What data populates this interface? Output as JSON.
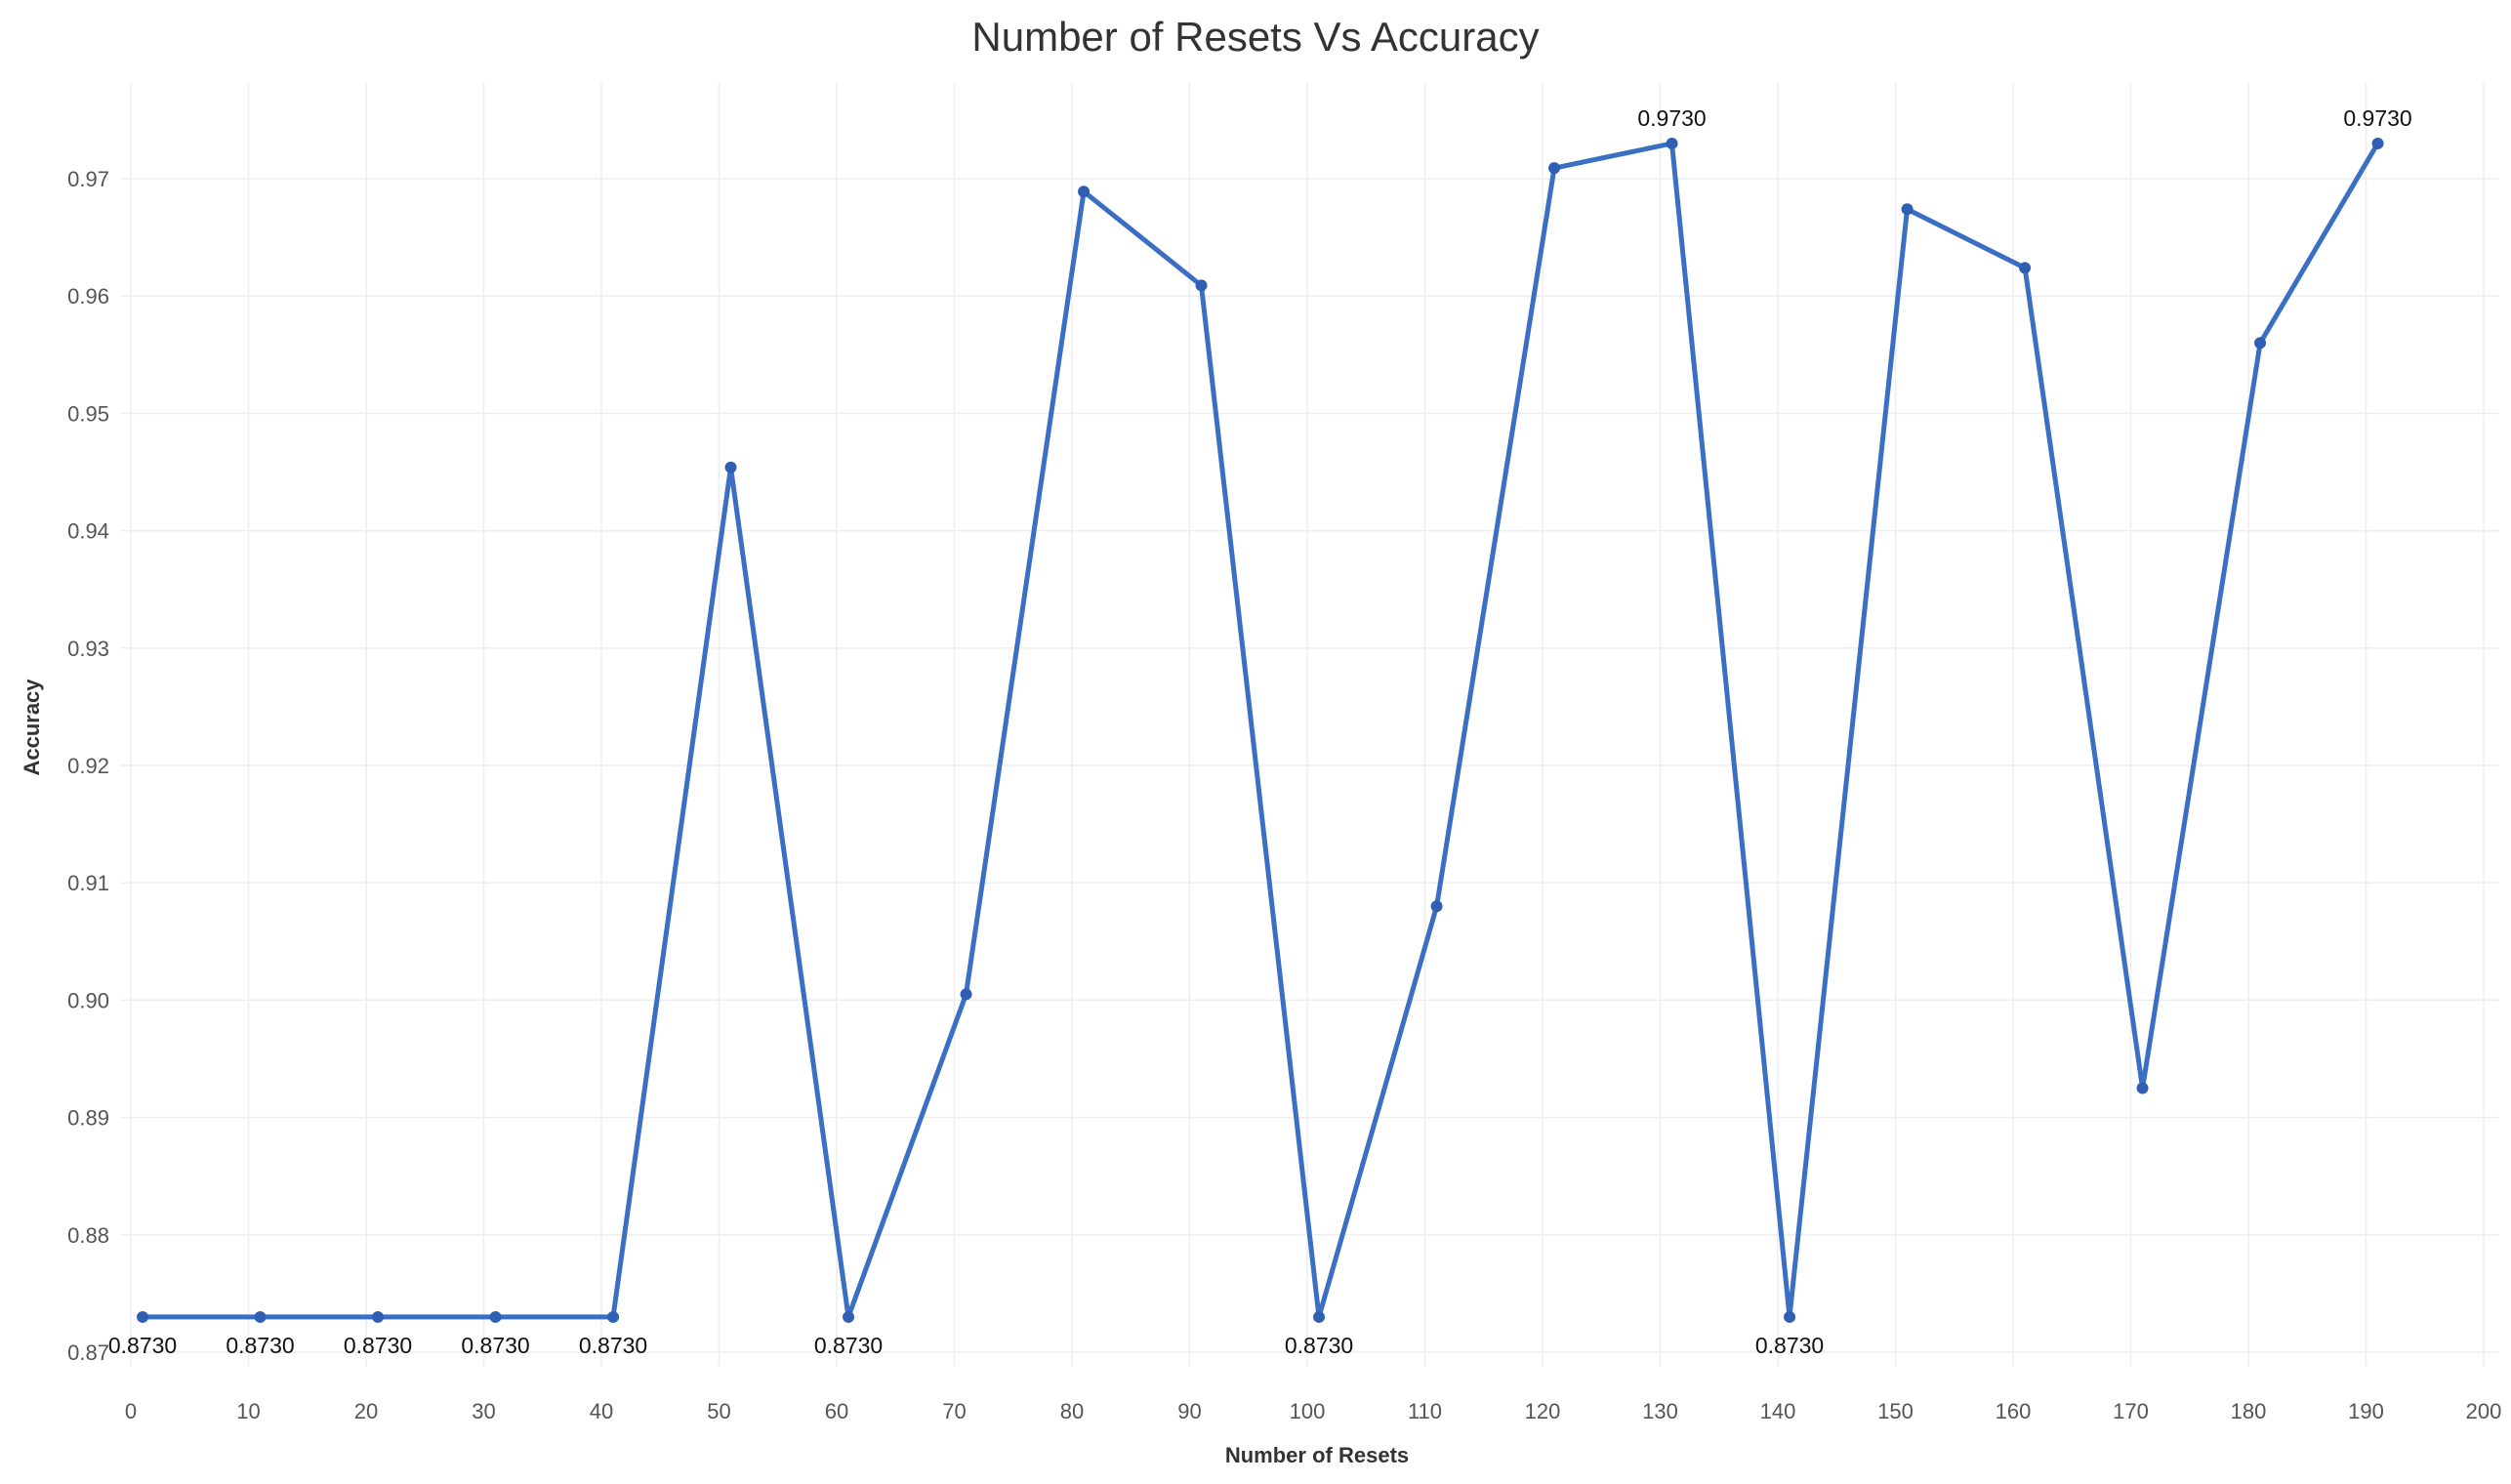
{
  "chart_data": {
    "type": "line",
    "title": "Number of Resets Vs Accuracy",
    "xlabel": "Number of Resets",
    "ylabel": "Accuracy",
    "xlim": [
      0,
      200
    ],
    "ylim": [
      0.87,
      0.975
    ],
    "x_ticks": [
      0,
      10,
      20,
      30,
      40,
      50,
      60,
      70,
      80,
      90,
      100,
      110,
      120,
      130,
      140,
      150,
      160,
      170,
      180,
      190,
      200
    ],
    "y_ticks": [
      0.87,
      0.88,
      0.89,
      0.9,
      0.91,
      0.92,
      0.93,
      0.94,
      0.95,
      0.96,
      0.97
    ],
    "y_tick_labels": [
      "0.87",
      "0.88",
      "0.89",
      "0.90",
      "0.91",
      "0.92",
      "0.93",
      "0.94",
      "0.95",
      "0.96",
      "0.97"
    ],
    "grid": true,
    "series": [
      {
        "color": "#3a6fc4",
        "x": [
          1,
          11,
          21,
          31,
          41,
          51,
          61,
          71,
          81,
          91,
          101,
          111,
          121,
          131,
          141,
          151,
          161,
          171,
          181,
          191
        ],
        "y": [
          0.873,
          0.873,
          0.873,
          0.873,
          0.873,
          0.9454,
          0.873,
          0.9005,
          0.9689,
          0.9609,
          0.873,
          0.908,
          0.9709,
          0.973,
          0.873,
          0.9674,
          0.9624,
          0.8925,
          0.956,
          0.973
        ]
      }
    ],
    "data_labels": [
      {
        "x": 1,
        "y": 0.873,
        "text": "0.8730",
        "position": "below"
      },
      {
        "x": 11,
        "y": 0.873,
        "text": "0.8730",
        "position": "below"
      },
      {
        "x": 21,
        "y": 0.873,
        "text": "0.8730",
        "position": "below"
      },
      {
        "x": 31,
        "y": 0.873,
        "text": "0.8730",
        "position": "below"
      },
      {
        "x": 41,
        "y": 0.873,
        "text": "0.8730",
        "position": "below"
      },
      {
        "x": 61,
        "y": 0.873,
        "text": "0.8730",
        "position": "below"
      },
      {
        "x": 101,
        "y": 0.873,
        "text": "0.8730",
        "position": "below"
      },
      {
        "x": 141,
        "y": 0.873,
        "text": "0.8730",
        "position": "below"
      },
      {
        "x": 131,
        "y": 0.973,
        "text": "0.9730",
        "position": "above"
      },
      {
        "x": 191,
        "y": 0.973,
        "text": "0.9730",
        "position": "above"
      }
    ]
  }
}
